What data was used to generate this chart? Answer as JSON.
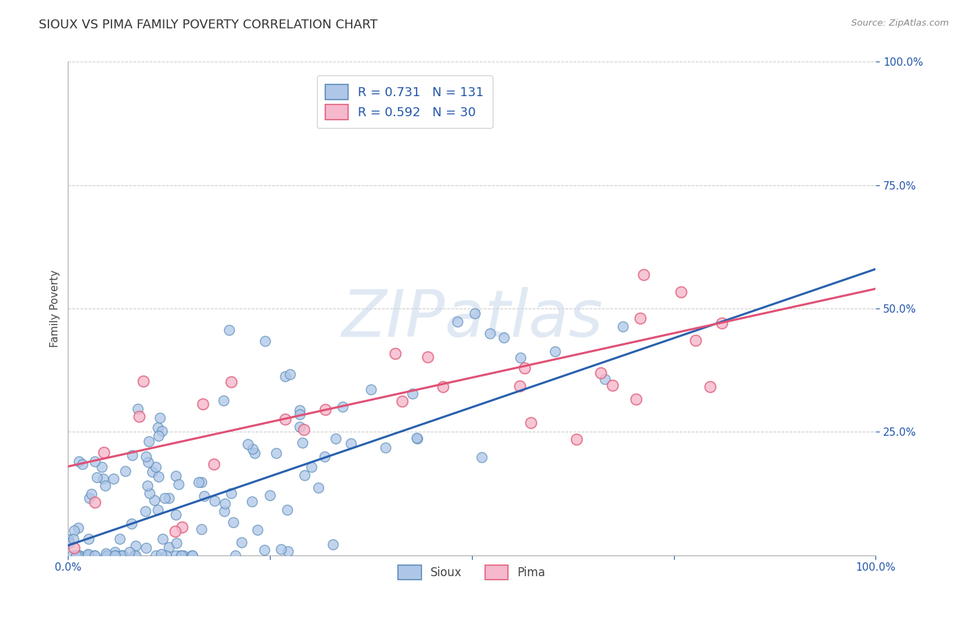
{
  "title": "SIOUX VS PIMA FAMILY POVERTY CORRELATION CHART",
  "source_text": "Source: ZipAtlas.com",
  "ylabel": "Family Poverty",
  "watermark": "ZIPatlas",
  "sioux_R": 0.731,
  "sioux_N": 131,
  "pima_R": 0.592,
  "pima_N": 30,
  "sioux_color": "#aec6e8",
  "sioux_edge_color": "#5b8db8",
  "pima_color": "#f5b8cc",
  "pima_edge_color": "#e0607a",
  "sioux_line_color": "#2860ae",
  "pima_line_color": "#e05075",
  "legend_text_color": "#2255aa",
  "title_color": "#333333",
  "sioux_line_intercept": 0.02,
  "sioux_line_slope": 0.56,
  "pima_line_intercept": 0.18,
  "pima_line_slope": 0.36
}
